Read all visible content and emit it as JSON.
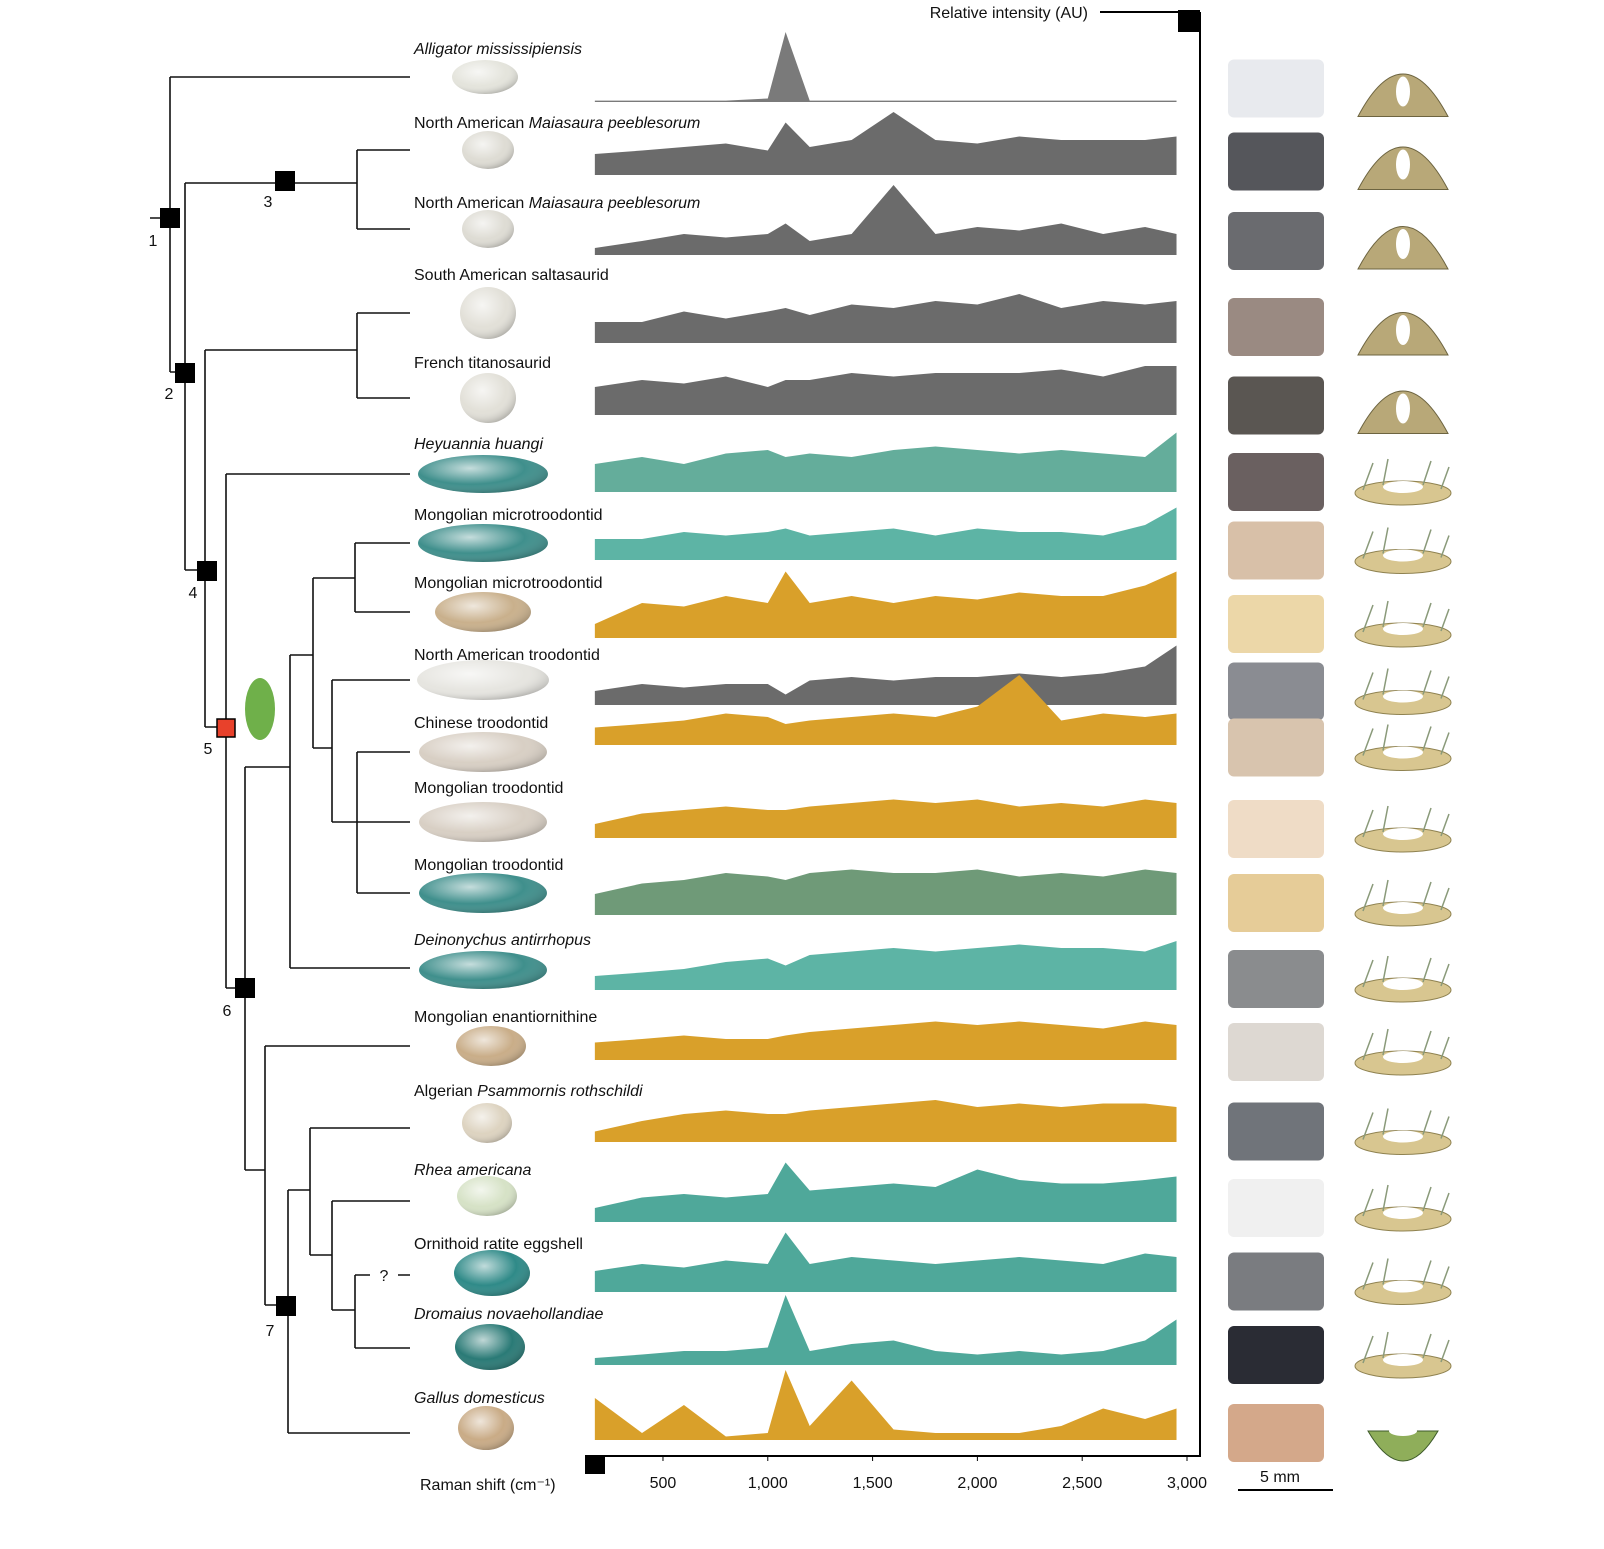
{
  "chart_data": {
    "type": "area",
    "y_label": "Relative intensity (AU)",
    "x_label": "Raman shift (cm⁻¹)",
    "xlim": [
      128,
      3062
    ],
    "xticks": [
      500,
      {
        "value": 1000,
        "label": "1,000"
      },
      {
        "value": 1500,
        "label": "1,500"
      },
      {
        "value": 2000,
        "label": "2,000"
      },
      {
        "value": 2500,
        "label": "2,500"
      },
      {
        "value": 3000,
        "label": "3,000"
      }
    ],
    "x": [
      175,
      400,
      600,
      800,
      1000,
      1085,
      1200,
      1400,
      1600,
      1800,
      2000,
      2200,
      2400,
      2600,
      2800,
      2950
    ],
    "series": [
      {
        "label": [
          {
            "text": "Alligator mississipiensis",
            "italic": true
          }
        ],
        "color": "#7a7a7a",
        "egg_color": "#e4e4dc",
        "values": [
          0.02,
          0.02,
          0.02,
          0.02,
          0.05,
          1.0,
          0.02,
          0.02,
          0.02,
          0.02,
          0.02,
          0.02,
          0.02,
          0.02,
          0.02,
          0.02
        ]
      },
      {
        "label": [
          {
            "text": "North American ",
            "italic": false
          },
          {
            "text": "Maiasaura peeblesorum",
            "italic": true
          }
        ],
        "color": "#6b6b6b",
        "egg_color": "#dedcd4",
        "values": [
          0.3,
          0.35,
          0.4,
          0.45,
          0.35,
          0.75,
          0.4,
          0.5,
          0.9,
          0.5,
          0.45,
          0.55,
          0.5,
          0.5,
          0.5,
          0.55
        ]
      },
      {
        "label": [
          {
            "text": "North American ",
            "italic": false
          },
          {
            "text": "Maiasaura peeblesorum",
            "italic": true
          }
        ],
        "color": "#6b6b6b",
        "egg_color": "#dedcd4",
        "values": [
          0.1,
          0.2,
          0.3,
          0.25,
          0.3,
          0.45,
          0.2,
          0.3,
          1.0,
          0.3,
          0.4,
          0.35,
          0.45,
          0.3,
          0.4,
          0.3
        ]
      },
      {
        "label": [
          {
            "text": "South American saltasaurid",
            "italic": false
          }
        ],
        "color": "#6b6b6b",
        "egg_color": "#e2e0d8",
        "values": [
          0.3,
          0.3,
          0.45,
          0.35,
          0.45,
          0.5,
          0.4,
          0.55,
          0.5,
          0.6,
          0.55,
          0.7,
          0.5,
          0.6,
          0.55,
          0.6
        ]
      },
      {
        "label": [
          {
            "text": "French titanosaurid",
            "italic": false
          }
        ],
        "color": "#6b6b6b",
        "egg_color": "#e2e0d8",
        "values": [
          0.4,
          0.5,
          0.45,
          0.55,
          0.4,
          0.5,
          0.5,
          0.6,
          0.55,
          0.6,
          0.6,
          0.6,
          0.65,
          0.55,
          0.7,
          0.7
        ]
      },
      {
        "label": [
          {
            "text": "Heyuannia huangi",
            "italic": true
          }
        ],
        "color": "#64ad9b",
        "egg_color": "#3f8f8c",
        "values": [
          0.4,
          0.5,
          0.4,
          0.55,
          0.6,
          0.5,
          0.55,
          0.5,
          0.6,
          0.65,
          0.6,
          0.55,
          0.6,
          0.55,
          0.5,
          0.85
        ]
      },
      {
        "label": [
          {
            "text": "Mongolian microtroodontid",
            "italic": false
          }
        ],
        "color": "#5db4a5",
        "egg_color": "#3f8f8c",
        "values": [
          0.3,
          0.3,
          0.4,
          0.35,
          0.4,
          0.45,
          0.35,
          0.4,
          0.45,
          0.35,
          0.45,
          0.4,
          0.4,
          0.35,
          0.5,
          0.75
        ]
      },
      {
        "label": [
          {
            "text": "Mongolian microtroodontid",
            "italic": false
          }
        ],
        "color": "#d9a02a",
        "egg_color": "#c9b08c",
        "values": [
          0.2,
          0.5,
          0.45,
          0.6,
          0.5,
          0.95,
          0.5,
          0.6,
          0.5,
          0.6,
          0.55,
          0.65,
          0.6,
          0.6,
          0.75,
          0.95
        ]
      },
      {
        "label": [
          {
            "text": "North American troodontid",
            "italic": false
          }
        ],
        "color": "#6b6b6b",
        "egg_color": "#e6e5e0",
        "values": [
          0.2,
          0.3,
          0.25,
          0.3,
          0.3,
          0.15,
          0.35,
          0.4,
          0.35,
          0.4,
          0.4,
          0.45,
          0.4,
          0.45,
          0.55,
          0.85
        ]
      },
      {
        "label": [
          {
            "text": "Chinese troodontid",
            "italic": false
          }
        ],
        "color": "#d9a02a",
        "egg_color": "#d8cfc4",
        "values": [
          0.25,
          0.3,
          0.35,
          0.45,
          0.4,
          0.3,
          0.35,
          0.4,
          0.45,
          0.4,
          0.55,
          1.0,
          0.35,
          0.45,
          0.4,
          0.45
        ]
      },
      {
        "label": [
          {
            "text": "Mongolian troodontid",
            "italic": false
          }
        ],
        "color": "#d9a02a",
        "egg_color": "#d8cfc4",
        "values": [
          0.2,
          0.35,
          0.4,
          0.45,
          0.4,
          0.4,
          0.45,
          0.5,
          0.55,
          0.5,
          0.55,
          0.45,
          0.5,
          0.45,
          0.55,
          0.5
        ]
      },
      {
        "label": [
          {
            "text": "Mongolian troodontid",
            "italic": false
          }
        ],
        "color": "#6f9a78",
        "egg_color": "#3f8f8c",
        "values": [
          0.3,
          0.45,
          0.5,
          0.6,
          0.55,
          0.5,
          0.6,
          0.65,
          0.6,
          0.6,
          0.65,
          0.55,
          0.6,
          0.55,
          0.65,
          0.6
        ]
      },
      {
        "label": [
          {
            "text": "Deinonychus antirrhopus",
            "italic": true
          }
        ],
        "color": "#5db4a5",
        "egg_color": "#3f8f8c",
        "values": [
          0.2,
          0.25,
          0.3,
          0.4,
          0.45,
          0.35,
          0.5,
          0.55,
          0.6,
          0.55,
          0.6,
          0.65,
          0.6,
          0.6,
          0.55,
          0.7
        ]
      },
      {
        "label": [
          {
            "text": "Mongolian enantiornithine",
            "italic": false
          }
        ],
        "color": "#d9a02a",
        "egg_color": "#c9ad88",
        "values": [
          0.25,
          0.3,
          0.35,
          0.3,
          0.3,
          0.35,
          0.4,
          0.45,
          0.5,
          0.55,
          0.5,
          0.55,
          0.5,
          0.45,
          0.55,
          0.5
        ]
      },
      {
        "label": [
          {
            "text": "Algerian ",
            "italic": false
          },
          {
            "text": "Psammornis rothschildi",
            "italic": true
          }
        ],
        "color": "#d9a02a",
        "egg_color": "#ddd3c0",
        "values": [
          0.15,
          0.3,
          0.4,
          0.45,
          0.4,
          0.4,
          0.45,
          0.5,
          0.55,
          0.6,
          0.5,
          0.55,
          0.5,
          0.55,
          0.55,
          0.5
        ]
      },
      {
        "label": [
          {
            "text": "Rhea americana",
            "italic": true
          }
        ],
        "color": "#4fa89a",
        "egg_color": "#d6e2c6",
        "values": [
          0.2,
          0.35,
          0.4,
          0.35,
          0.4,
          0.85,
          0.45,
          0.5,
          0.55,
          0.5,
          0.75,
          0.6,
          0.55,
          0.55,
          0.6,
          0.65
        ]
      },
      {
        "label": [
          {
            "text": "Ornithoid ratite eggshell",
            "italic": false
          }
        ],
        "color": "#4fa89a",
        "egg_color": "#2f8a88",
        "values": [
          0.3,
          0.4,
          0.35,
          0.45,
          0.4,
          0.85,
          0.4,
          0.5,
          0.45,
          0.4,
          0.45,
          0.5,
          0.45,
          0.4,
          0.55,
          0.5
        ]
      },
      {
        "label": [
          {
            "text": "Dromaius novaehollandiae",
            "italic": true
          }
        ],
        "color": "#4fa89a",
        "egg_color": "#2a7a76",
        "values": [
          0.1,
          0.15,
          0.2,
          0.2,
          0.25,
          1.0,
          0.2,
          0.3,
          0.35,
          0.2,
          0.15,
          0.2,
          0.15,
          0.2,
          0.35,
          0.65
        ]
      },
      {
        "label": [
          {
            "text": "Gallus domesticus",
            "italic": true
          }
        ],
        "color": "#d9a02a",
        "egg_color": "#c9ab86",
        "values": [
          0.6,
          0.1,
          0.5,
          0.05,
          0.1,
          1.0,
          0.2,
          0.85,
          0.15,
          0.1,
          0.1,
          0.1,
          0.2,
          0.45,
          0.3,
          0.45
        ]
      }
    ]
  },
  "tree": {
    "nodes": [
      "1",
      "2",
      "3",
      "4",
      "5",
      "6",
      "7"
    ],
    "unknown": "?"
  },
  "scale_bar": "5 mm"
}
